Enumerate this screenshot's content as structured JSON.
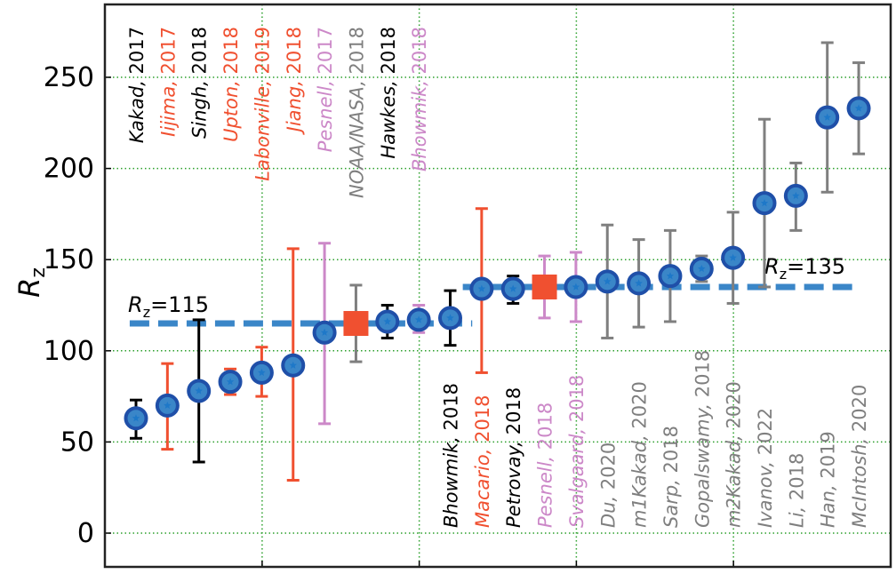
{
  "chart_data": {
    "type": "scatter",
    "title": "",
    "xlabel": "",
    "ylabel": "R",
    "ylabel_subscript": "z",
    "xlim": [
      -1,
      23
    ],
    "ylim": [
      -20,
      290
    ],
    "yticks": [
      0,
      50,
      100,
      150,
      200,
      250
    ],
    "xticks": [
      4,
      9,
      14,
      19
    ],
    "grid": true,
    "grid_color": "#2ca02c",
    "marker_color": "#3a86c8",
    "marker_edge_color": "#1f4fa8",
    "square_color": "#f05030",
    "colors": {
      "black": "#000000",
      "red": "#f05030",
      "pink": "#cc88c8",
      "gray": "#7f7f7f"
    },
    "points": [
      {
        "x": 0,
        "y": 63,
        "low": 52,
        "high": 73,
        "color": "black",
        "label": "Kakad, 2017",
        "label_pos": "top"
      },
      {
        "x": 1,
        "y": 70,
        "low": 46,
        "high": 93,
        "color": "red",
        "label": "Iijima, 2017",
        "label_pos": "top"
      },
      {
        "x": 2,
        "y": 78,
        "low": 39,
        "high": 117,
        "color": "black",
        "label": "Singh, 2018",
        "label_pos": "top"
      },
      {
        "x": 3,
        "y": 83,
        "low": 76,
        "high": 90,
        "color": "red",
        "label": "Upton, 2018",
        "label_pos": "top"
      },
      {
        "x": 4,
        "y": 88,
        "low": 75,
        "high": 102,
        "color": "red",
        "label": "Labonville, 2019",
        "label_pos": "top"
      },
      {
        "x": 5,
        "y": 92,
        "low": 29,
        "high": 156,
        "color": "red",
        "label": "Jiang, 2018",
        "label_pos": "top"
      },
      {
        "x": 6,
        "y": 110,
        "low": 60,
        "high": 159,
        "color": "pink",
        "label": "Pesnell, 2017",
        "label_pos": "top"
      },
      {
        "x": 7,
        "y": 115,
        "low": 94,
        "high": 136,
        "color": "gray",
        "label": "NOAA/NASA, 2018",
        "label_pos": "top",
        "marker": "square"
      },
      {
        "x": 8,
        "y": 116,
        "low": 107,
        "high": 125,
        "color": "black",
        "label": "Hawkes, 2018",
        "label_pos": "top"
      },
      {
        "x": 9,
        "y": 117,
        "low": 110,
        "high": 125,
        "color": "pink",
        "label": "Bhowmik, 2018",
        "label_pos": "top"
      },
      {
        "x": 10,
        "y": 118,
        "low": 103,
        "high": 133,
        "color": "black",
        "label": "Bhowmik, 2018",
        "label_pos": "bottom"
      },
      {
        "x": 11,
        "y": 134,
        "low": 88,
        "high": 178,
        "color": "red",
        "label": "Macario, 2018",
        "label_pos": "bottom"
      },
      {
        "x": 12,
        "y": 134,
        "low": 126,
        "high": 141,
        "color": "black",
        "label": "Petrovay, 2018",
        "label_pos": "bottom"
      },
      {
        "x": 13,
        "y": 135,
        "low": 118,
        "high": 152,
        "color": "pink",
        "label": "Pesnell, 2018",
        "label_pos": "bottom",
        "marker": "square"
      },
      {
        "x": 14,
        "y": 135,
        "low": 116,
        "high": 154,
        "color": "pink",
        "label": "Svalgaard, 2018",
        "label_pos": "bottom"
      },
      {
        "x": 15,
        "y": 138,
        "low": 107,
        "high": 169,
        "color": "gray",
        "label": "Du, 2020",
        "label_pos": "bottom"
      },
      {
        "x": 16,
        "y": 137,
        "low": 113,
        "high": 161,
        "color": "gray",
        "label": "m1Kakad, 2020",
        "label_pos": "bottom"
      },
      {
        "x": 17,
        "y": 141,
        "low": 116,
        "high": 166,
        "color": "gray",
        "label": "Sarp, 2018",
        "label_pos": "bottom"
      },
      {
        "x": 18,
        "y": 145,
        "low": 138,
        "high": 152,
        "color": "gray",
        "label": "Gopalswamy, 2018",
        "label_pos": "bottom"
      },
      {
        "x": 19,
        "y": 151,
        "low": 126,
        "high": 176,
        "color": "gray",
        "label": "m2Kakad, 2020",
        "label_pos": "bottom"
      },
      {
        "x": 20,
        "y": 181,
        "low": 135,
        "high": 227,
        "color": "gray",
        "label": "Ivanov, 2022",
        "label_pos": "bottom"
      },
      {
        "x": 21,
        "y": 185,
        "low": 166,
        "high": 203,
        "color": "gray",
        "label": "Li, 2018",
        "label_pos": "bottom"
      },
      {
        "x": 22,
        "y": 228,
        "low": 187,
        "high": 269,
        "color": "gray",
        "label": "Han, 2019",
        "label_pos": "bottom"
      },
      {
        "x": 23,
        "y": 233,
        "low": 208,
        "high": 258,
        "color": "gray",
        "label": "McIntosh, 2020",
        "label_pos": "bottom"
      }
    ],
    "reference_lines": [
      {
        "value": 115,
        "x_start": -0.2,
        "x_end": 10.7,
        "label_prefix": "R",
        "label_sub": "z",
        "label_suffix": "=115"
      },
      {
        "value": 135,
        "x_start": 10.4,
        "x_end": 23.0,
        "label_prefix": "R",
        "label_sub": "z",
        "label_suffix": "=135"
      }
    ]
  }
}
